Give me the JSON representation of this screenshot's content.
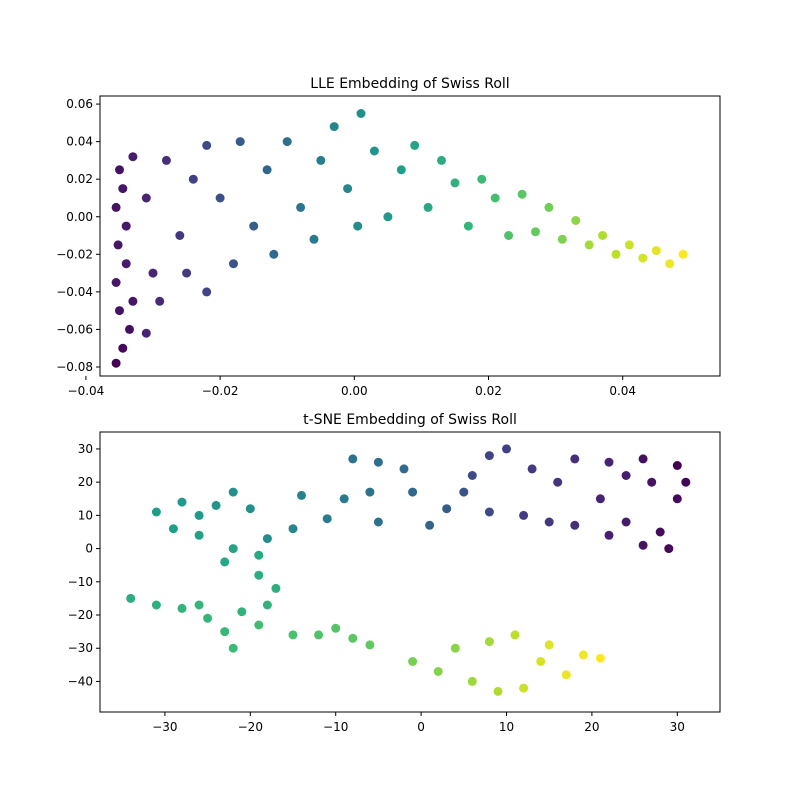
{
  "chart_data": [
    {
      "type": "scatter",
      "title": "LLE Embedding of Swiss Roll",
      "xlabel": "",
      "ylabel": "",
      "xlim": [
        -0.0379,
        0.0545
      ],
      "ylim": [
        -0.0848,
        0.0643
      ],
      "xticks": [
        -0.04,
        -0.02,
        0.0,
        0.02,
        0.04
      ],
      "xtick_labels": [
        "−0.04",
        "−0.02",
        "0.00",
        "0.02",
        "0.04"
      ],
      "yticks": [
        -0.08,
        -0.06,
        -0.04,
        -0.02,
        0.0,
        0.02,
        0.04,
        0.06
      ],
      "ytick_labels": [
        "−0.08",
        "−0.06",
        "−0.04",
        "−0.02",
        "0.00",
        "0.02",
        "0.04",
        "0.06"
      ],
      "colormap": "viridis",
      "color_encodes": "position along the roll (t)",
      "grid": false,
      "series": [
        {
          "points": [
            {
              "x": -0.0355,
              "y": -0.078,
              "t": 0.0
            },
            {
              "x": -0.0345,
              "y": -0.07,
              "t": 0.02
            },
            {
              "x": -0.0335,
              "y": -0.06,
              "t": 0.04
            },
            {
              "x": -0.035,
              "y": -0.05,
              "t": 0.05
            },
            {
              "x": -0.033,
              "y": -0.045,
              "t": 0.06
            },
            {
              "x": -0.0355,
              "y": -0.035,
              "t": 0.06
            },
            {
              "x": -0.034,
              "y": -0.025,
              "t": 0.07
            },
            {
              "x": -0.0352,
              "y": -0.015,
              "t": 0.06
            },
            {
              "x": -0.034,
              "y": -0.005,
              "t": 0.07
            },
            {
              "x": -0.0355,
              "y": 0.005,
              "t": 0.05
            },
            {
              "x": -0.0345,
              "y": 0.015,
              "t": 0.06
            },
            {
              "x": -0.035,
              "y": 0.025,
              "t": 0.05
            },
            {
              "x": -0.033,
              "y": 0.032,
              "t": 0.08
            },
            {
              "x": -0.031,
              "y": 0.01,
              "t": 0.1
            },
            {
              "x": -0.03,
              "y": -0.03,
              "t": 0.1
            },
            {
              "x": -0.029,
              "y": -0.045,
              "t": 0.11
            },
            {
              "x": -0.031,
              "y": -0.062,
              "t": 0.1
            },
            {
              "x": -0.028,
              "y": 0.03,
              "t": 0.13
            },
            {
              "x": -0.026,
              "y": -0.01,
              "t": 0.16
            },
            {
              "x": -0.025,
              "y": -0.03,
              "t": 0.17
            },
            {
              "x": -0.024,
              "y": 0.02,
              "t": 0.19
            },
            {
              "x": -0.022,
              "y": 0.038,
              "t": 0.22
            },
            {
              "x": -0.022,
              "y": -0.04,
              "t": 0.2
            },
            {
              "x": -0.02,
              "y": 0.01,
              "t": 0.24
            },
            {
              "x": -0.018,
              "y": -0.025,
              "t": 0.26
            },
            {
              "x": -0.017,
              "y": 0.04,
              "t": 0.28
            },
            {
              "x": -0.015,
              "y": -0.005,
              "t": 0.3
            },
            {
              "x": -0.013,
              "y": 0.025,
              "t": 0.33
            },
            {
              "x": -0.012,
              "y": -0.02,
              "t": 0.34
            },
            {
              "x": -0.01,
              "y": 0.04,
              "t": 0.37
            },
            {
              "x": -0.008,
              "y": 0.005,
              "t": 0.39
            },
            {
              "x": -0.006,
              "y": -0.012,
              "t": 0.41
            },
            {
              "x": -0.005,
              "y": 0.03,
              "t": 0.43
            },
            {
              "x": -0.003,
              "y": 0.048,
              "t": 0.46
            },
            {
              "x": -0.001,
              "y": 0.015,
              "t": 0.47
            },
            {
              "x": 0.0005,
              "y": -0.005,
              "t": 0.49
            },
            {
              "x": 0.001,
              "y": 0.055,
              "t": 0.5
            },
            {
              "x": 0.003,
              "y": 0.035,
              "t": 0.52
            },
            {
              "x": 0.005,
              "y": 0.0,
              "t": 0.54
            },
            {
              "x": 0.007,
              "y": 0.025,
              "t": 0.56
            },
            {
              "x": 0.009,
              "y": 0.038,
              "t": 0.58
            },
            {
              "x": 0.011,
              "y": 0.005,
              "t": 0.6
            },
            {
              "x": 0.013,
              "y": 0.03,
              "t": 0.62
            },
            {
              "x": 0.015,
              "y": 0.018,
              "t": 0.64
            },
            {
              "x": 0.017,
              "y": -0.005,
              "t": 0.66
            },
            {
              "x": 0.019,
              "y": 0.02,
              "t": 0.68
            },
            {
              "x": 0.021,
              "y": 0.01,
              "t": 0.7
            },
            {
              "x": 0.023,
              "y": -0.01,
              "t": 0.72
            },
            {
              "x": 0.025,
              "y": 0.012,
              "t": 0.74
            },
            {
              "x": 0.027,
              "y": -0.008,
              "t": 0.76
            },
            {
              "x": 0.029,
              "y": 0.005,
              "t": 0.78
            },
            {
              "x": 0.031,
              "y": -0.012,
              "t": 0.8
            },
            {
              "x": 0.033,
              "y": -0.002,
              "t": 0.83
            },
            {
              "x": 0.035,
              "y": -0.015,
              "t": 0.86
            },
            {
              "x": 0.037,
              "y": -0.01,
              "t": 0.88
            },
            {
              "x": 0.039,
              "y": -0.02,
              "t": 0.9
            },
            {
              "x": 0.041,
              "y": -0.015,
              "t": 0.92
            },
            {
              "x": 0.043,
              "y": -0.022,
              "t": 0.94
            },
            {
              "x": 0.045,
              "y": -0.018,
              "t": 0.96
            },
            {
              "x": 0.047,
              "y": -0.025,
              "t": 0.98
            },
            {
              "x": 0.049,
              "y": -0.02,
              "t": 1.0
            }
          ]
        }
      ]
    },
    {
      "type": "scatter",
      "title": "t-SNE Embedding of Swiss Roll",
      "xlabel": "",
      "ylabel": "",
      "xlim": [
        -37.6,
        35.0
      ],
      "ylim": [
        -49.2,
        35.1
      ],
      "xticks": [
        -30,
        -20,
        -10,
        0,
        10,
        20,
        30
      ],
      "xtick_labels": [
        "−30",
        "−20",
        "−10",
        "0",
        "10",
        "20",
        "30"
      ],
      "yticks": [
        -40,
        -30,
        -20,
        -10,
        0,
        10,
        20,
        30
      ],
      "ytick_labels": [
        "−40",
        "−30",
        "−20",
        "−10",
        "0",
        "10",
        "20",
        "30"
      ],
      "colormap": "viridis",
      "color_encodes": "position along the roll (t)",
      "grid": false,
      "series": [
        {
          "points": [
            {
              "x": 30,
              "y": 25,
              "t": 0.0
            },
            {
              "x": 31,
              "y": 20,
              "t": 0.01
            },
            {
              "x": 30,
              "y": 15,
              "t": 0.02
            },
            {
              "x": 28,
              "y": 5,
              "t": 0.03
            },
            {
              "x": 29,
              "y": 0,
              "t": 0.02
            },
            {
              "x": 26,
              "y": 1,
              "t": 0.05
            },
            {
              "x": 26,
              "y": 27,
              "t": 0.04
            },
            {
              "x": 27,
              "y": 20,
              "t": 0.05
            },
            {
              "x": 24,
              "y": 22,
              "t": 0.08
            },
            {
              "x": 22,
              "y": 26,
              "t": 0.1
            },
            {
              "x": 24,
              "y": 8,
              "t": 0.07
            },
            {
              "x": 22,
              "y": 4,
              "t": 0.09
            },
            {
              "x": 21,
              "y": 15,
              "t": 0.1
            },
            {
              "x": 18,
              "y": 27,
              "t": 0.13
            },
            {
              "x": 16,
              "y": 20,
              "t": 0.15
            },
            {
              "x": 18,
              "y": 7,
              "t": 0.13
            },
            {
              "x": 15,
              "y": 8,
              "t": 0.16
            },
            {
              "x": 12,
              "y": 10,
              "t": 0.18
            },
            {
              "x": 13,
              "y": 24,
              "t": 0.17
            },
            {
              "x": 10,
              "y": 30,
              "t": 0.19
            },
            {
              "x": 8,
              "y": 28,
              "t": 0.2
            },
            {
              "x": 6,
              "y": 22,
              "t": 0.23
            },
            {
              "x": 8,
              "y": 11,
              "t": 0.22
            },
            {
              "x": 5,
              "y": 17,
              "t": 0.26
            },
            {
              "x": 3,
              "y": 12,
              "t": 0.29
            },
            {
              "x": 1,
              "y": 7,
              "t": 0.32
            },
            {
              "x": -1,
              "y": 17,
              "t": 0.33
            },
            {
              "x": -2,
              "y": 24,
              "t": 0.34
            },
            {
              "x": -5,
              "y": 26,
              "t": 0.36
            },
            {
              "x": -8,
              "y": 27,
              "t": 0.38
            },
            {
              "x": -6,
              "y": 17,
              "t": 0.38
            },
            {
              "x": -5,
              "y": 8,
              "t": 0.37
            },
            {
              "x": -9,
              "y": 15,
              "t": 0.41
            },
            {
              "x": -11,
              "y": 9,
              "t": 0.42
            },
            {
              "x": -14,
              "y": 16,
              "t": 0.45
            },
            {
              "x": -15,
              "y": 6,
              "t": 0.46
            },
            {
              "x": -18,
              "y": 3,
              "t": 0.49
            },
            {
              "x": -20,
              "y": 12,
              "t": 0.5
            },
            {
              "x": -22,
              "y": 17,
              "t": 0.5
            },
            {
              "x": -24,
              "y": 13,
              "t": 0.52
            },
            {
              "x": -26,
              "y": 10,
              "t": 0.54
            },
            {
              "x": -28,
              "y": 14,
              "t": 0.54
            },
            {
              "x": -31,
              "y": 11,
              "t": 0.55
            },
            {
              "x": -29,
              "y": 6,
              "t": 0.56
            },
            {
              "x": -26,
              "y": 4,
              "t": 0.57
            },
            {
              "x": -22,
              "y": 0,
              "t": 0.58
            },
            {
              "x": -19,
              "y": -2,
              "t": 0.6
            },
            {
              "x": -23,
              "y": -4,
              "t": 0.59
            },
            {
              "x": -19,
              "y": -8,
              "t": 0.62
            },
            {
              "x": -17,
              "y": -12,
              "t": 0.63
            },
            {
              "x": -18,
              "y": -17,
              "t": 0.64
            },
            {
              "x": -21,
              "y": -19,
              "t": 0.65
            },
            {
              "x": -34,
              "y": -15,
              "t": 0.62
            },
            {
              "x": -31,
              "y": -17,
              "t": 0.63
            },
            {
              "x": -28,
              "y": -18,
              "t": 0.65
            },
            {
              "x": -25,
              "y": -21,
              "t": 0.66
            },
            {
              "x": -26,
              "y": -17,
              "t": 0.66
            },
            {
              "x": -23,
              "y": -25,
              "t": 0.67
            },
            {
              "x": -22,
              "y": -30,
              "t": 0.68
            },
            {
              "x": -19,
              "y": -23,
              "t": 0.69
            },
            {
              "x": -15,
              "y": -26,
              "t": 0.71
            },
            {
              "x": -12,
              "y": -26,
              "t": 0.72
            },
            {
              "x": -10,
              "y": -24,
              "t": 0.73
            },
            {
              "x": -8,
              "y": -27,
              "t": 0.74
            },
            {
              "x": -6,
              "y": -29,
              "t": 0.75
            },
            {
              "x": -1,
              "y": -34,
              "t": 0.79
            },
            {
              "x": 2,
              "y": -37,
              "t": 0.81
            },
            {
              "x": 4,
              "y": -30,
              "t": 0.82
            },
            {
              "x": 6,
              "y": -40,
              "t": 0.85
            },
            {
              "x": 8,
              "y": -28,
              "t": 0.86
            },
            {
              "x": 9,
              "y": -43,
              "t": 0.88
            },
            {
              "x": 11,
              "y": -26,
              "t": 0.9
            },
            {
              "x": 12,
              "y": -42,
              "t": 0.92
            },
            {
              "x": 14,
              "y": -34,
              "t": 0.94
            },
            {
              "x": 15,
              "y": -29,
              "t": 0.95
            },
            {
              "x": 17,
              "y": -38,
              "t": 0.97
            },
            {
              "x": 19,
              "y": -32,
              "t": 0.98
            },
            {
              "x": 21,
              "y": -33,
              "t": 1.0
            }
          ]
        }
      ]
    }
  ]
}
